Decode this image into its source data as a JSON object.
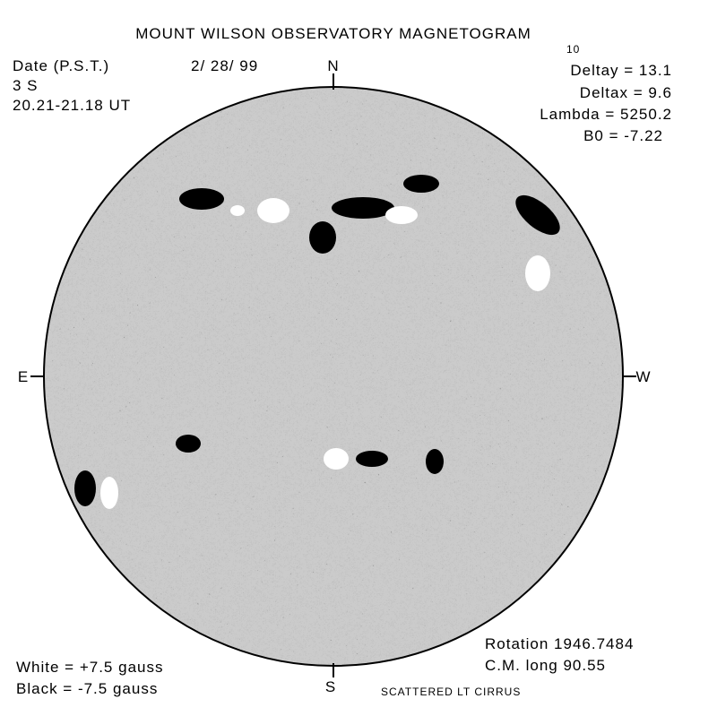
{
  "header": {
    "title": "MOUNT WILSON OBSERVATORY MAGNETOGRAM"
  },
  "observation": {
    "date_label": "Date (P.S.T.)",
    "date": "2/ 28/ 99",
    "seeing": "3  S",
    "time": "20.21-21.18 UT"
  },
  "parameters": {
    "exponent": "10",
    "lines": [
      "Deltay  =  13.1",
      "Deltax  =  9.6",
      "Lambda  =  5250.2",
      "B0  =  -7.22"
    ]
  },
  "directions": {
    "north": "N",
    "south": "S",
    "east": "E",
    "west": "W"
  },
  "rotation": {
    "rotation": "Rotation  1946.7484",
    "cm_long": "C.M.  long  90.55"
  },
  "scale": {
    "white": "White  =  +7.5  gauss",
    "black": "Black  =  -7.5  gauss"
  },
  "note": "SCATTERED LT CIRRUS"
}
